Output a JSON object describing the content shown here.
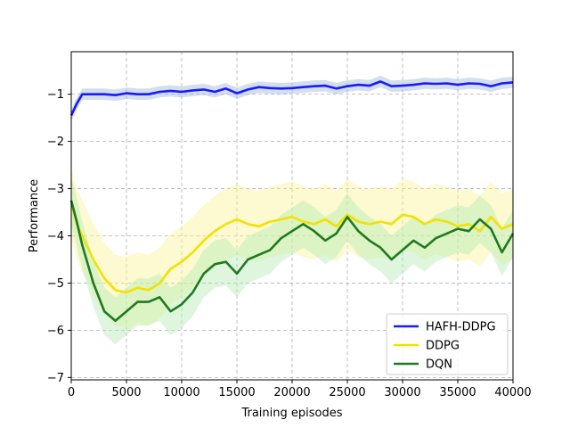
{
  "chart_data": {
    "type": "line",
    "title": "",
    "xlabel": "Training episodes",
    "ylabel": "Performance",
    "xlim": [
      0,
      40000
    ],
    "ylim": [
      -7.05,
      -0.1
    ],
    "xticks": [
      0,
      5000,
      10000,
      15000,
      20000,
      25000,
      30000,
      35000,
      40000
    ],
    "yticks": [
      -7,
      -6,
      -5,
      -4,
      -3,
      -2,
      -1
    ],
    "grid": true,
    "grid_style": "dashed",
    "legend_position": "lower-right",
    "series": [
      {
        "name": "HAFH-DDPG",
        "color": "#1a1aff",
        "band_color": "#9db8d8",
        "x": [
          0,
          500,
          1000,
          2000,
          3000,
          4000,
          5000,
          6000,
          7000,
          8000,
          9000,
          10000,
          11000,
          12000,
          13000,
          14000,
          15000,
          16000,
          17000,
          18000,
          19000,
          20000,
          21000,
          22000,
          23000,
          24000,
          25000,
          26000,
          27000,
          28000,
          29000,
          30000,
          31000,
          32000,
          33000,
          34000,
          35000,
          36000,
          37000,
          38000,
          39000,
          40000
        ],
        "values": [
          -1.45,
          -1.2,
          -1.0,
          -1.0,
          -1.0,
          -1.02,
          -0.98,
          -1.0,
          -1.0,
          -0.95,
          -0.93,
          -0.95,
          -0.92,
          -0.9,
          -0.95,
          -0.88,
          -0.98,
          -0.9,
          -0.85,
          -0.87,
          -0.88,
          -0.87,
          -0.85,
          -0.83,
          -0.82,
          -0.88,
          -0.83,
          -0.8,
          -0.82,
          -0.73,
          -0.83,
          -0.82,
          -0.8,
          -0.77,
          -0.78,
          -0.77,
          -0.8,
          -0.77,
          -0.78,
          -0.83,
          -0.77,
          -0.75
        ],
        "band": 0.12
      },
      {
        "name": "DDPG",
        "color": "#f2e200",
        "band_color": "#fbf29a",
        "x": [
          0,
          500,
          1000,
          2000,
          3000,
          4000,
          5000,
          6000,
          7000,
          8000,
          9000,
          10000,
          11000,
          12000,
          13000,
          14000,
          15000,
          16000,
          17000,
          18000,
          19000,
          20000,
          21000,
          22000,
          23000,
          24000,
          25000,
          26000,
          27000,
          28000,
          29000,
          30000,
          31000,
          32000,
          33000,
          34000,
          35000,
          36000,
          37000,
          38000,
          39000,
          40000
        ],
        "values": [
          -3.3,
          -3.75,
          -4.0,
          -4.5,
          -4.9,
          -5.15,
          -5.2,
          -5.1,
          -5.15,
          -5.0,
          -4.7,
          -4.55,
          -4.35,
          -4.1,
          -3.9,
          -3.75,
          -3.65,
          -3.75,
          -3.8,
          -3.7,
          -3.65,
          -3.6,
          -3.7,
          -3.75,
          -3.65,
          -3.8,
          -3.55,
          -3.7,
          -3.75,
          -3.7,
          -3.75,
          -3.55,
          -3.6,
          -3.75,
          -3.65,
          -3.7,
          -3.8,
          -3.75,
          -3.9,
          -3.6,
          -3.85,
          -3.75
        ],
        "band": 0.75
      },
      {
        "name": "DQN",
        "color": "#1f7a1f",
        "band_color": "#b4ecb4",
        "x": [
          0,
          500,
          1000,
          2000,
          3000,
          4000,
          5000,
          6000,
          7000,
          8000,
          9000,
          10000,
          11000,
          12000,
          13000,
          14000,
          15000,
          16000,
          17000,
          18000,
          19000,
          20000,
          21000,
          22000,
          23000,
          24000,
          25000,
          26000,
          27000,
          28000,
          29000,
          30000,
          31000,
          32000,
          33000,
          34000,
          35000,
          36000,
          37000,
          38000,
          39000,
          40000
        ],
        "values": [
          -3.25,
          -3.7,
          -4.2,
          -5.0,
          -5.6,
          -5.8,
          -5.6,
          -5.4,
          -5.4,
          -5.3,
          -5.6,
          -5.45,
          -5.2,
          -4.8,
          -4.6,
          -4.55,
          -4.8,
          -4.5,
          -4.4,
          -4.3,
          -4.05,
          -3.9,
          -3.75,
          -3.9,
          -4.1,
          -3.95,
          -3.6,
          -3.9,
          -4.1,
          -4.25,
          -4.5,
          -4.3,
          -4.1,
          -4.25,
          -4.05,
          -3.95,
          -3.85,
          -3.9,
          -3.65,
          -3.85,
          -4.35,
          -3.95
        ],
        "band": 0.5
      }
    ]
  }
}
